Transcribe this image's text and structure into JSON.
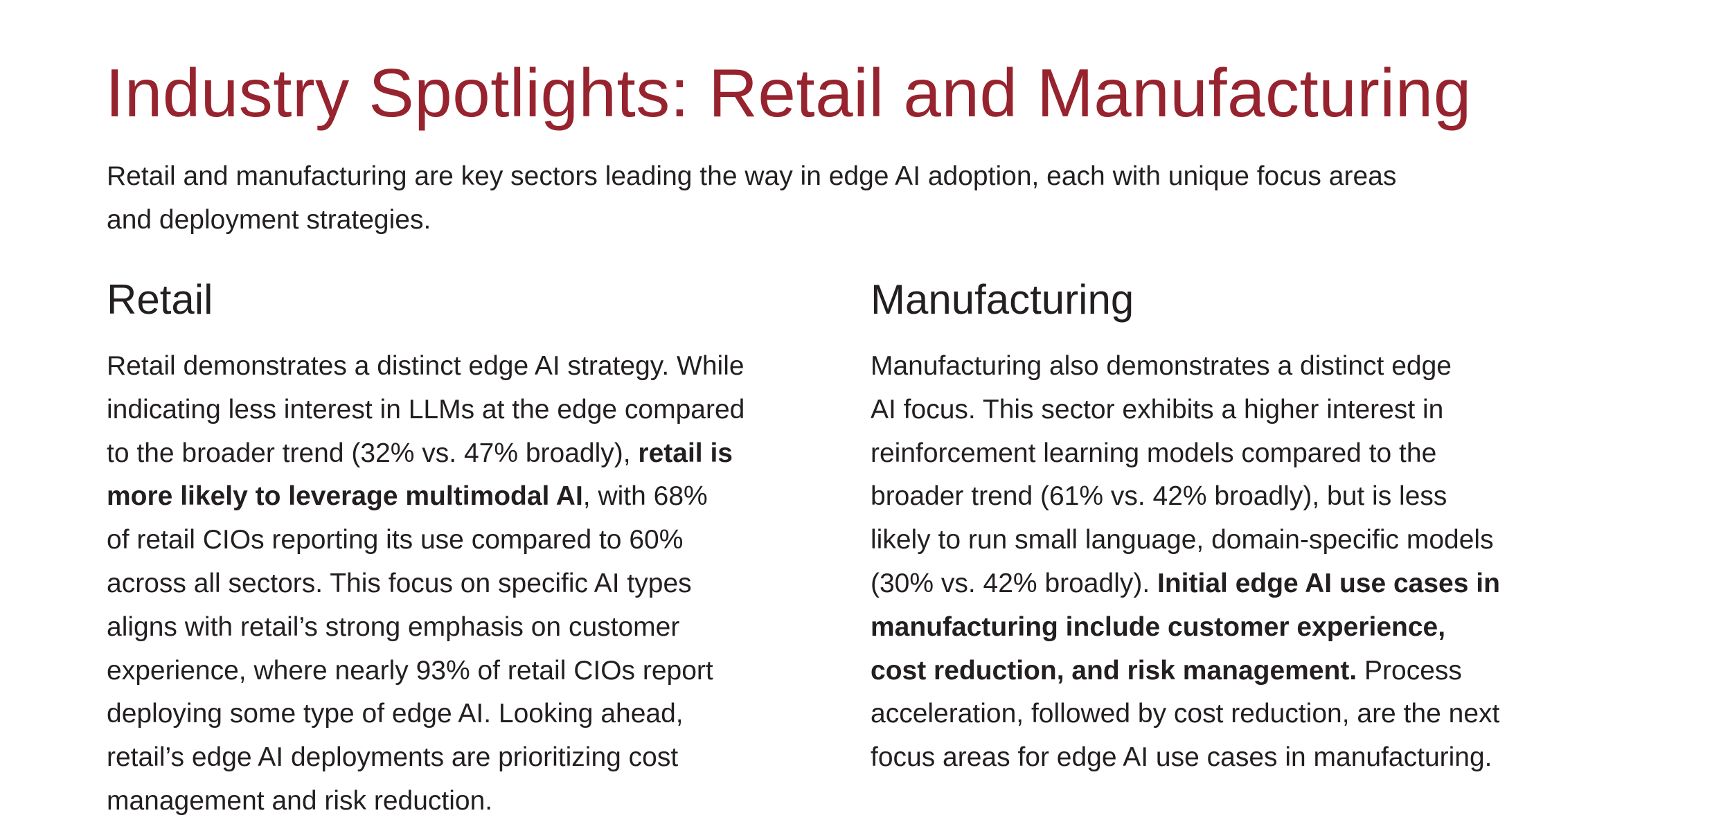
{
  "title": "Industry Spotlights: Retail and Manufacturing",
  "intro_lines": [
    [
      {
        "t": "Retail and manufacturing are key sectors leading the way in edge AI adoption, each with unique focus areas"
      }
    ],
    [
      {
        "t": "and deployment strategies."
      }
    ]
  ],
  "retail": {
    "heading": "Retail",
    "lines": [
      [
        {
          "t": "Retail demonstrates a distinct edge AI strategy. While"
        }
      ],
      [
        {
          "t": "indicating less interest in LLMs at the edge compared"
        }
      ],
      [
        {
          "t": "to the broader trend (32% vs. 47% broadly), "
        },
        {
          "t": "retail is",
          "b": true
        }
      ],
      [
        {
          "t": "more likely to leverage multimodal AI",
          "b": true
        },
        {
          "t": ", with 68%"
        }
      ],
      [
        {
          "t": "of retail CIOs reporting its use compared to 60%"
        }
      ],
      [
        {
          "t": "across all sectors. This focus on specific AI types"
        }
      ],
      [
        {
          "t": "aligns with retail’s strong emphasis on customer"
        }
      ],
      [
        {
          "t": "experience, where nearly 93% of retail CIOs report"
        }
      ],
      [
        {
          "t": "deploying some type of edge AI. Looking ahead,"
        }
      ],
      [
        {
          "t": "retail’s edge AI deployments are prioritizing cost"
        }
      ],
      [
        {
          "t": "management and risk reduction."
        }
      ]
    ]
  },
  "manufacturing": {
    "heading": "Manufacturing",
    "lines": [
      [
        {
          "t": "Manufacturing also demonstrates a distinct edge"
        }
      ],
      [
        {
          "t": "AI focus. This sector exhibits a higher interest in"
        }
      ],
      [
        {
          "t": "reinforcement learning models compared to the"
        }
      ],
      [
        {
          "t": "broader trend (61% vs. 42% broadly), but is less"
        }
      ],
      [
        {
          "t": "likely to run small language, domain-specific models"
        }
      ],
      [
        {
          "t": "(30% vs. 42% broadly). "
        },
        {
          "t": "Initial edge AI use cases in",
          "b": true
        }
      ],
      [
        {
          "t": "manufacturing include customer experience,",
          "b": true
        }
      ],
      [
        {
          "t": "cost reduction, and risk management.",
          "b": true
        },
        {
          "t": " Process"
        }
      ],
      [
        {
          "t": "acceleration, followed by cost reduction, are the next"
        }
      ],
      [
        {
          "t": "focus areas for edge AI use cases in manufacturing."
        }
      ]
    ]
  },
  "colors": {
    "title": "#97232e",
    "text": "#231f20"
  }
}
